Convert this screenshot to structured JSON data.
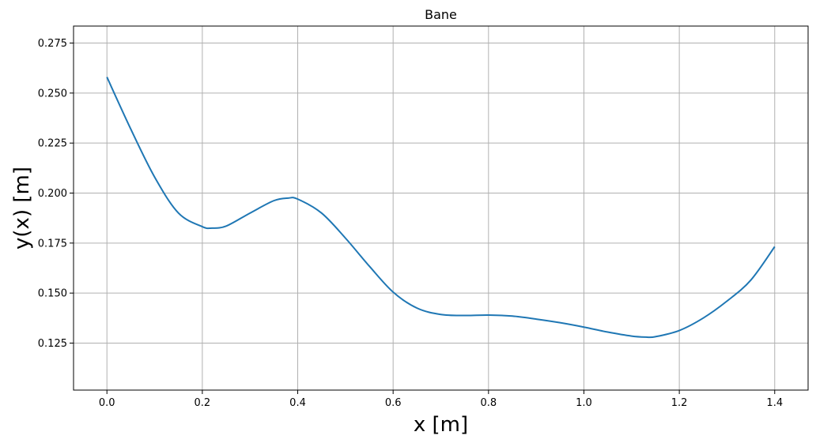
{
  "chart_data": {
    "type": "line",
    "title": "Bane",
    "xlabel": "x [m]",
    "ylabel": "y(x) [m]",
    "xlim": [
      -0.07,
      1.47
    ],
    "ylim": [
      0.1015,
      0.2835
    ],
    "grid": true,
    "xticks": [
      0.0,
      0.2,
      0.4,
      0.6,
      0.8,
      1.0,
      1.2,
      1.4
    ],
    "xtick_labels": [
      "0.0",
      "0.2",
      "0.4",
      "0.6",
      "0.8",
      "1.0",
      "1.2",
      "1.4"
    ],
    "yticks": [
      0.125,
      0.15,
      0.175,
      0.2,
      0.225,
      0.25,
      0.275
    ],
    "ytick_labels": [
      "0.125",
      "0.150",
      "0.175",
      "0.200",
      "0.225",
      "0.250",
      "0.275"
    ],
    "series": [
      {
        "color": "#1f77b4",
        "x": [
          0.0,
          0.05,
          0.1,
          0.15,
          0.2,
          0.22,
          0.25,
          0.3,
          0.35,
          0.38,
          0.4,
          0.45,
          0.5,
          0.55,
          0.6,
          0.65,
          0.7,
          0.75,
          0.8,
          0.85,
          0.9,
          0.95,
          1.0,
          1.05,
          1.1,
          1.13,
          1.15,
          1.2,
          1.25,
          1.3,
          1.35,
          1.4
        ],
        "y": [
          0.258,
          0.232,
          0.208,
          0.19,
          0.1832,
          0.1825,
          0.1835,
          0.19,
          0.1962,
          0.1975,
          0.197,
          0.19,
          0.1775,
          0.1635,
          0.1505,
          0.1425,
          0.1393,
          0.1388,
          0.139,
          0.1385,
          0.137,
          0.1352,
          0.133,
          0.1305,
          0.1285,
          0.128,
          0.1282,
          0.1313,
          0.1375,
          0.146,
          0.1565,
          0.1732
        ]
      }
    ]
  }
}
